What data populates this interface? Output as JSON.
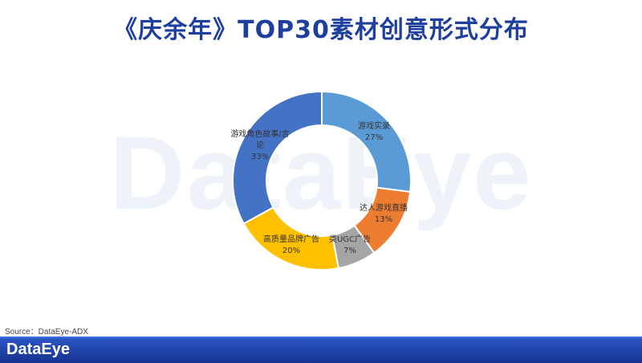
{
  "page": {
    "title": "《庆余年》TOP30素材创意形式分布",
    "watermark": "DataEye",
    "source": "Source：DataEye-ADX",
    "footer_brand": "DataEye"
  },
  "chart_data": {
    "type": "pie",
    "title": "《庆余年》TOP30素材创意形式分布",
    "donut": true,
    "slices": [
      {
        "label": "游戏实录",
        "value": 27,
        "percent_text": "27%",
        "color": "#5b9bd5"
      },
      {
        "label": "达人游戏直播",
        "value": 13,
        "percent_text": "13%",
        "color": "#ed7d31"
      },
      {
        "label": "类UGC广告",
        "value": 7,
        "percent_text": "7%",
        "color": "#a5a5a5"
      },
      {
        "label": "高质量品牌广告",
        "value": 20,
        "percent_text": "20%",
        "color": "#ffc000"
      },
      {
        "label": "游戏角色故事/言论",
        "value": 33,
        "percent_text": "33%",
        "color": "#4472c4"
      }
    ]
  }
}
